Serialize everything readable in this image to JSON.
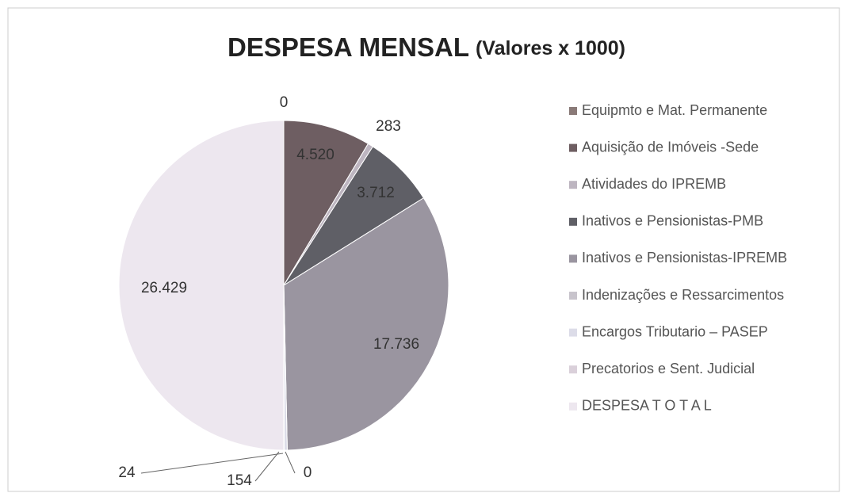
{
  "chart_data": {
    "type": "pie",
    "title": "DESPESA MENSAL",
    "subtitle": "(Valores x 1000)",
    "categories": [
      "Equipmto e Mat. Permanente",
      "Aquisição de Imóveis -Sede",
      "Atividades do IPREMB",
      "Inativos e Pensionistas-PMB",
      "Inativos e Pensionistas-IPREMB",
      "Indenizações e Ressarcimentos",
      "Encargos Tributario – PASEP",
      "Precatorios e Sent. Judicial",
      "DESPESA T O T A L"
    ],
    "values": [
      0,
      4520,
      283,
      3712,
      17736,
      0,
      154,
      24,
      26429
    ],
    "value_labels": [
      "0",
      "4.520",
      "283",
      "3.712",
      "17.736",
      "0",
      "154",
      "24",
      "26.429"
    ],
    "colors": [
      "#8a7a78",
      "#6e5e62",
      "#bdb5c0",
      "#5f5f66",
      "#9a95a0",
      "#c8c4cc",
      "#dcdce8",
      "#dad0da",
      "#ede7ef"
    ],
    "legend": "right"
  }
}
